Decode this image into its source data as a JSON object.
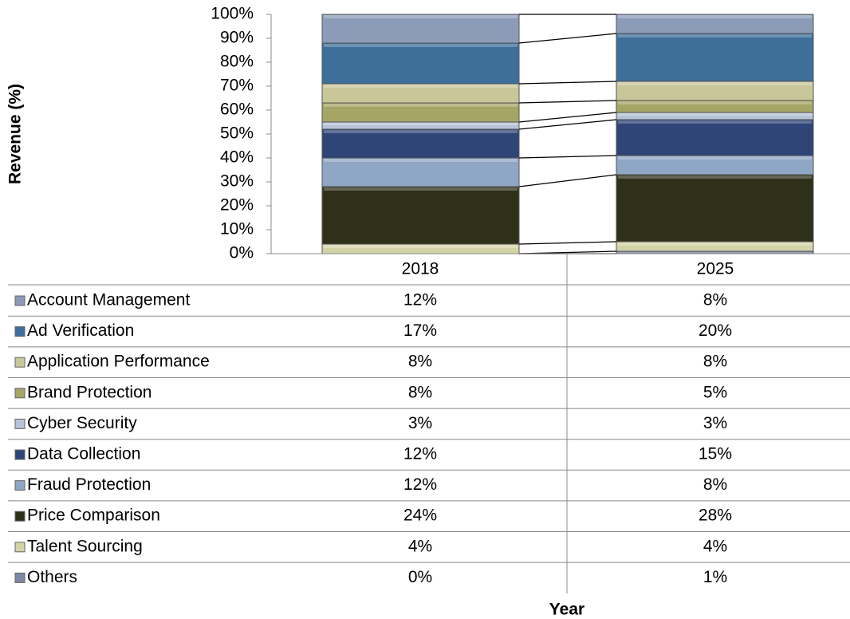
{
  "chart_data": {
    "type": "stacked_bar_100",
    "y_label": "Revenue (%)",
    "x_label": "Year",
    "categories": [
      "2018",
      "2025"
    ],
    "series": [
      {
        "name": "Account Management",
        "color": "#8c9bb8",
        "values": [
          12,
          8
        ],
        "value_labels": [
          "12%",
          "8%"
        ]
      },
      {
        "name": "Ad Verification",
        "color": "#3e6e9a",
        "values": [
          17,
          20
        ],
        "value_labels": [
          "17%",
          "20%"
        ]
      },
      {
        "name": "Application Performance",
        "color": "#c9c79a",
        "values": [
          8,
          8
        ],
        "value_labels": [
          "8%",
          "8%"
        ]
      },
      {
        "name": "Brand Protection",
        "color": "#a5a566",
        "values": [
          8,
          5
        ],
        "value_labels": [
          "8%",
          "5%"
        ]
      },
      {
        "name": "Cyber Security",
        "color": "#b7c4d8",
        "values": [
          3,
          3
        ],
        "value_labels": [
          "3%",
          "3%"
        ]
      },
      {
        "name": "Data Collection",
        "color": "#2f4577",
        "values": [
          12,
          15
        ],
        "value_labels": [
          "12%",
          "15%"
        ]
      },
      {
        "name": "Fraud Protection",
        "color": "#8fa6c4",
        "values": [
          12,
          8
        ],
        "value_labels": [
          "12%",
          "8%"
        ]
      },
      {
        "name": "Price Comparison",
        "color": "#2f301a",
        "values": [
          24,
          28
        ],
        "value_labels": [
          "24%",
          "28%"
        ]
      },
      {
        "name": "Talent Sourcing",
        "color": "#d3d3a8",
        "values": [
          4,
          4
        ],
        "value_labels": [
          "4%",
          "4%"
        ]
      },
      {
        "name": "Others",
        "color": "#7d87a5",
        "values": [
          0,
          1
        ],
        "value_labels": [
          "0%",
          "1%"
        ]
      }
    ],
    "ylim": [
      0,
      100
    ],
    "yticks": [
      {
        "value": 0,
        "label": "0%"
      },
      {
        "value": 10,
        "label": "10%"
      },
      {
        "value": 20,
        "label": "20%"
      },
      {
        "value": 30,
        "label": "30%"
      },
      {
        "value": 40,
        "label": "40%"
      },
      {
        "value": 50,
        "label": "50%"
      },
      {
        "value": 60,
        "label": "60%"
      },
      {
        "value": 70,
        "label": "70%"
      },
      {
        "value": 80,
        "label": "80%"
      },
      {
        "value": 90,
        "label": "90%"
      },
      {
        "value": 100,
        "label": "100%"
      }
    ]
  }
}
